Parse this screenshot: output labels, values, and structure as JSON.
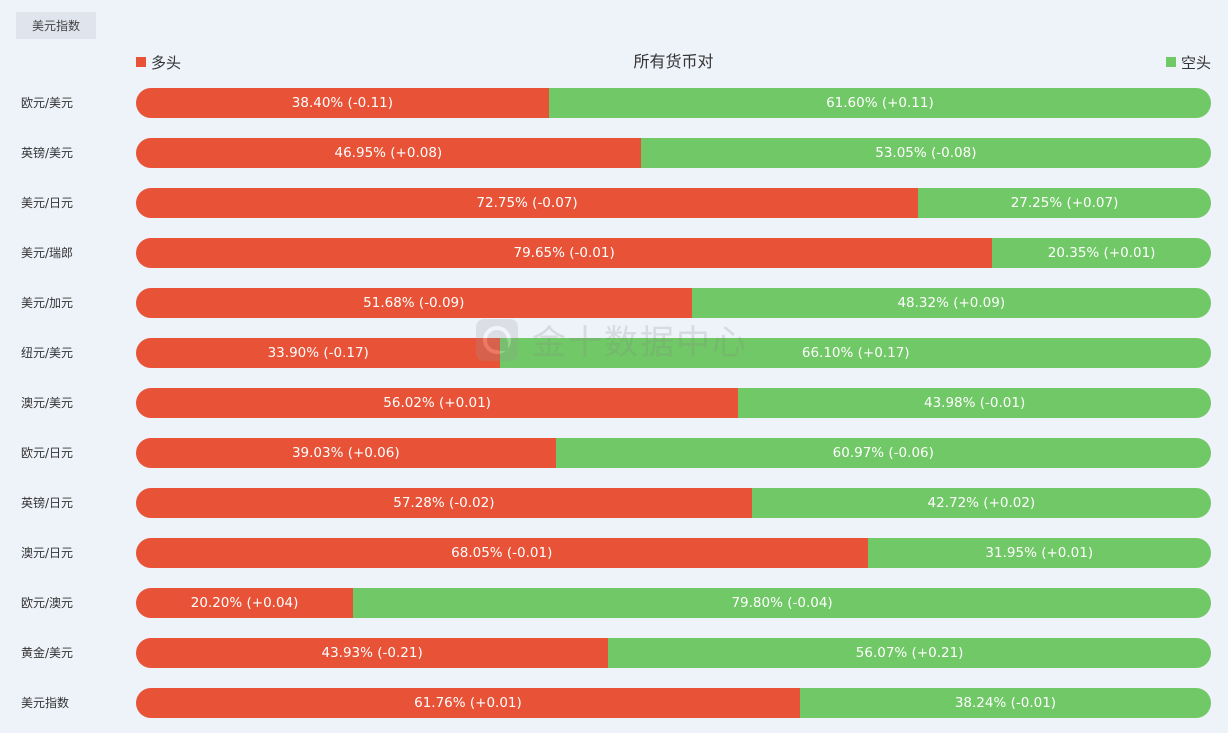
{
  "tab": {
    "label": "美元指数"
  },
  "header": {
    "title": "所有货币对",
    "legend_long": "多头",
    "legend_short": "空头"
  },
  "watermark": {
    "text": "金十数据中心"
  },
  "colors": {
    "long": "#e85237",
    "short": "#70c866"
  },
  "chart_data": {
    "type": "bar",
    "stacked": true,
    "orientation": "horizontal",
    "title": "所有货币对",
    "categories": [
      "欧元/美元",
      "英镑/美元",
      "美元/日元",
      "美元/瑞郎",
      "美元/加元",
      "纽元/美元",
      "澳元/美元",
      "欧元/日元",
      "英镑/日元",
      "澳元/日元",
      "欧元/澳元",
      "黄金/美元",
      "美元指数"
    ],
    "series": [
      {
        "name": "多头",
        "color": "#e85237",
        "values": [
          38.4,
          46.95,
          72.75,
          79.65,
          51.68,
          33.9,
          56.02,
          39.03,
          57.28,
          68.05,
          20.2,
          43.93,
          61.76
        ],
        "labels": [
          "38.40% (-0.11)",
          "46.95% (+0.08)",
          "72.75% (-0.07)",
          "79.65% (-0.01)",
          "51.68% (-0.09)",
          "33.90% (-0.17)",
          "56.02% (+0.01)",
          "39.03% (+0.06)",
          "57.28% (-0.02)",
          "68.05% (-0.01)",
          "20.20% (+0.04)",
          "43.93% (-0.21)",
          "61.76% (+0.01)"
        ]
      },
      {
        "name": "空头",
        "color": "#70c866",
        "values": [
          61.6,
          53.05,
          27.25,
          20.35,
          48.32,
          66.1,
          43.98,
          60.97,
          42.72,
          31.95,
          79.8,
          56.07,
          38.24
        ],
        "labels": [
          "61.60% (+0.11)",
          "53.05% (-0.08)",
          "27.25% (+0.07)",
          "20.35% (+0.01)",
          "48.32% (+0.09)",
          "66.10% (+0.17)",
          "43.98% (-0.01)",
          "60.97% (-0.06)",
          "42.72% (+0.02)",
          "31.95% (+0.01)",
          "79.80% (-0.04)",
          "56.07% (+0.21)",
          "38.24% (-0.01)"
        ]
      }
    ],
    "xlim": [
      0,
      100
    ],
    "legend": "top"
  }
}
